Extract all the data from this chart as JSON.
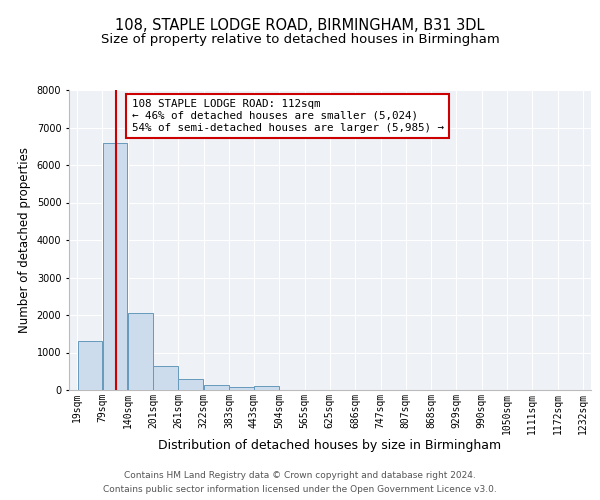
{
  "title": "108, STAPLE LODGE ROAD, BIRMINGHAM, B31 3DL",
  "subtitle": "Size of property relative to detached houses in Birmingham",
  "xlabel": "Distribution of detached houses by size in Birmingham",
  "ylabel": "Number of detached properties",
  "bar_heights": [
    1300,
    6600,
    2050,
    650,
    290,
    130,
    90,
    100,
    0,
    0,
    0,
    0,
    0,
    0,
    0,
    0,
    0,
    0,
    0,
    0
  ],
  "bin_edges": [
    19,
    79,
    140,
    201,
    261,
    322,
    383,
    443,
    504,
    565,
    625,
    686,
    747,
    807,
    868,
    929,
    990,
    1050,
    1111,
    1172,
    1232
  ],
  "bin_labels": [
    "19sqm",
    "79sqm",
    "140sqm",
    "201sqm",
    "261sqm",
    "322sqm",
    "383sqm",
    "443sqm",
    "504sqm",
    "565sqm",
    "625sqm",
    "686sqm",
    "747sqm",
    "807sqm",
    "868sqm",
    "929sqm",
    "990sqm",
    "1050sqm",
    "1111sqm",
    "1172sqm",
    "1232sqm"
  ],
  "bar_color": "#ccdcec",
  "bar_edge_color": "#6699bb",
  "vline_x": 112,
  "vline_color": "#cc0000",
  "ylim": [
    0,
    8000
  ],
  "yticks": [
    0,
    1000,
    2000,
    3000,
    4000,
    5000,
    6000,
    7000,
    8000
  ],
  "annotation_text": "108 STAPLE LODGE ROAD: 112sqm\n← 46% of detached houses are smaller (5,024)\n54% of semi-detached houses are larger (5,985) →",
  "annotation_box_facecolor": "#ffffff",
  "annotation_box_edge": "#cc0000",
  "footer1": "Contains HM Land Registry data © Crown copyright and database right 2024.",
  "footer2": "Contains public sector information licensed under the Open Government Licence v3.0.",
  "bg_color": "#ffffff",
  "plot_bg_color": "#eef2f7",
  "grid_color": "#ffffff",
  "title_fontsize": 10.5,
  "subtitle_fontsize": 9.5,
  "ylabel_fontsize": 8.5,
  "xlabel_fontsize": 9,
  "tick_fontsize": 7,
  "annot_fontsize": 7.8,
  "footer_fontsize": 6.5
}
